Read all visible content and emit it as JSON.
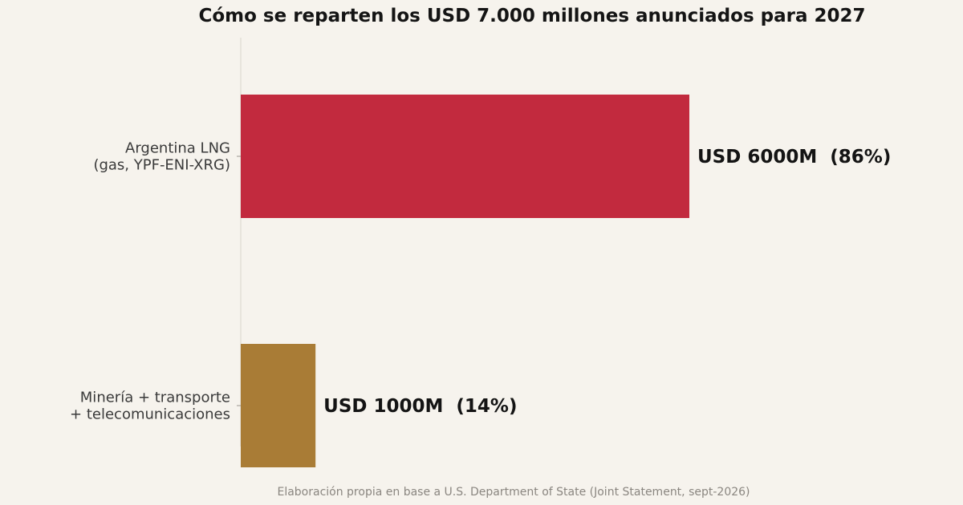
{
  "chart_data": {
    "type": "bar",
    "orientation": "horizontal",
    "title": "Cómo se reparten los USD 7.000 millones anunciados para 2027",
    "categories": [
      [
        "Argentina LNG",
        "(gas, YPF-ENI-XRG)"
      ],
      [
        "Minería + transporte",
        "+ telecomunicaciones"
      ]
    ],
    "values": [
      6000,
      1000
    ],
    "value_labels": [
      "USD 6000M  (86%)",
      "USD 1000M  (14%)"
    ],
    "colors": [
      "#c22a3e",
      "#a97c36"
    ],
    "xlim": [
      0,
      9000
    ],
    "grid": false,
    "legend": "none",
    "source": "Elaboración propia en base a U.S. Department of State (Joint Statement, sept-2026)"
  }
}
